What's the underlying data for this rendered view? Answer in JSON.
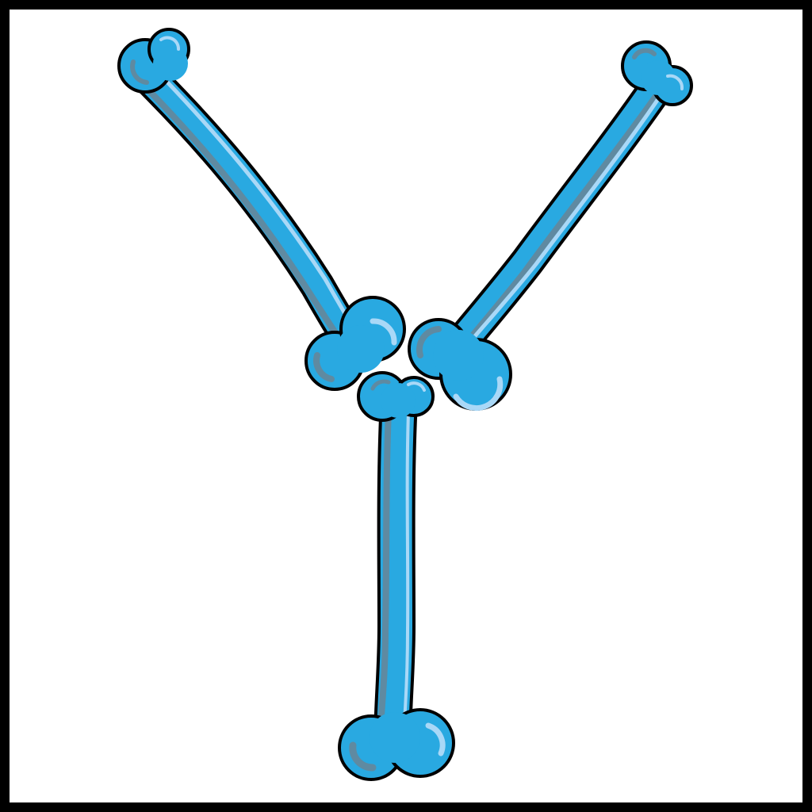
{
  "picture": {
    "letter": "Y",
    "icon": "bone-letter-y-icon"
  },
  "colors": {
    "background": "#ffffff",
    "frame": "#000000",
    "bone_fill": "#29a9e1",
    "bone_outline": "#000000",
    "bone_shadow": "#5f8aa1",
    "bone_highlight": "#a9d8f7"
  }
}
